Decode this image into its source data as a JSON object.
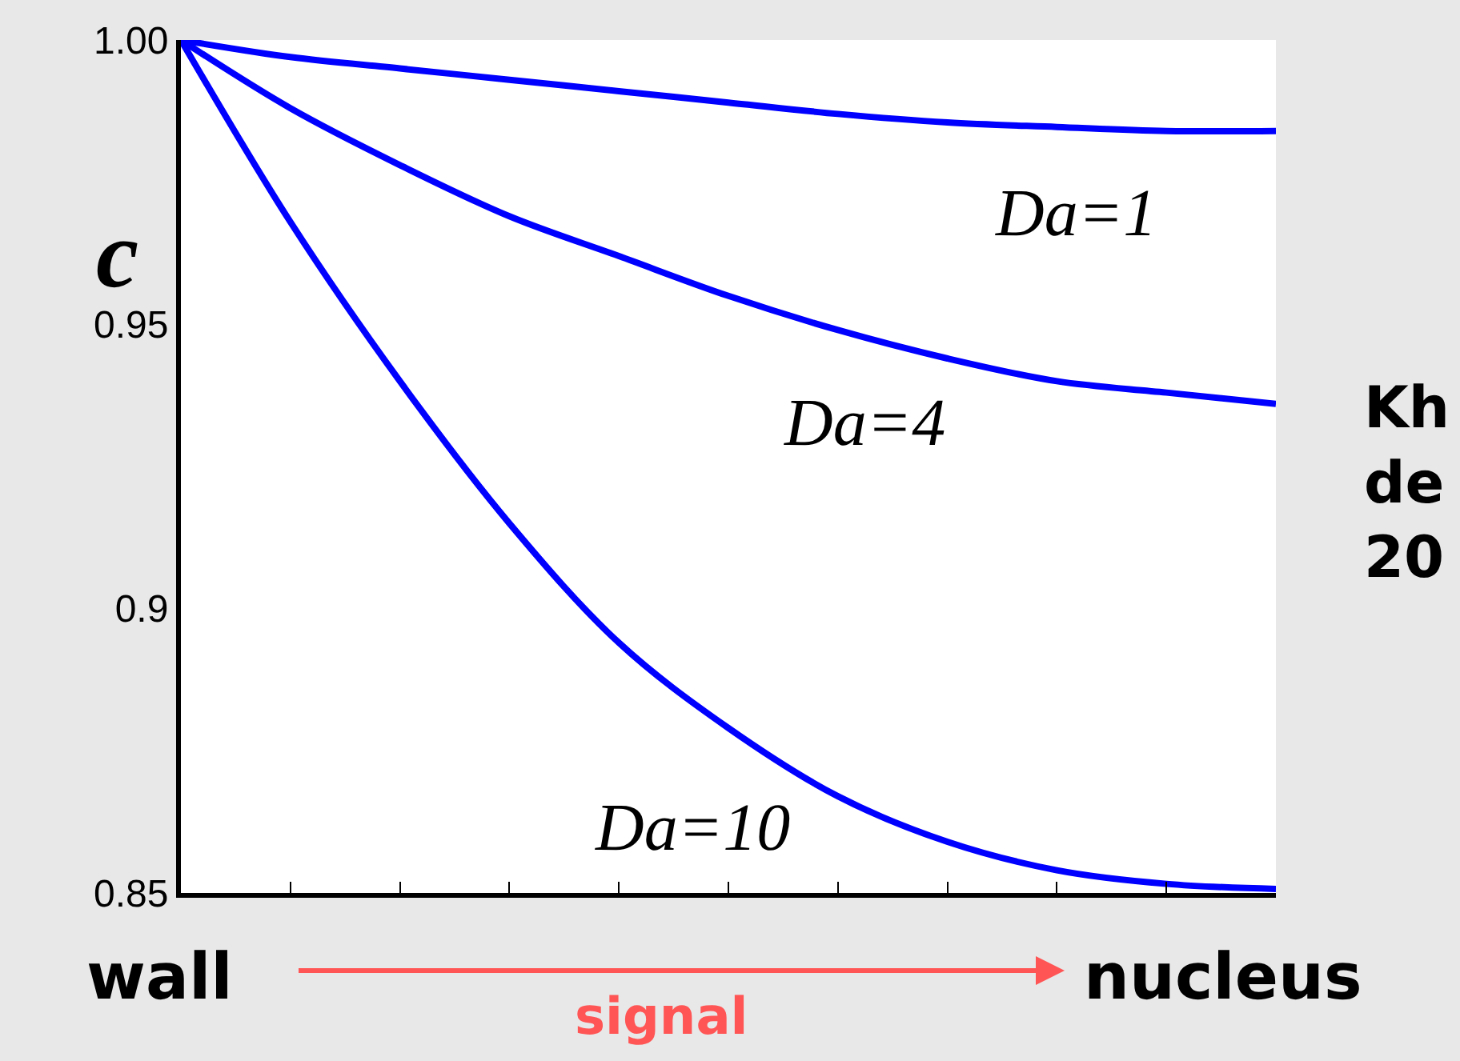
{
  "chart_data": {
    "type": "line",
    "ylabel": "c",
    "categories": [
      null,
      null,
      null,
      null,
      null,
      null,
      null,
      null,
      null,
      null,
      null
    ],
    "series": [
      {
        "color": "#0000ff",
        "values": [
          1.0,
          0.997,
          0.995,
          0.993,
          0.991,
          0.989,
          0.987,
          0.9855,
          0.9847,
          0.984,
          0.984
        ]
      },
      {
        "color": "#0000ff",
        "values": [
          1.0,
          0.988,
          0.978,
          0.969,
          0.962,
          0.955,
          0.949,
          0.944,
          0.94,
          0.938,
          0.936
        ]
      },
      {
        "color": "#0000ff",
        "values": [
          1.0,
          0.968,
          0.94,
          0.915,
          0.894,
          0.879,
          0.867,
          0.859,
          0.854,
          0.8516,
          0.8507
        ]
      }
    ],
    "ylim": [
      0.85,
      1.0
    ],
    "yticks": [
      {
        "value": 0.85,
        "label": "0.85"
      },
      {
        "value": 0.9,
        "label": "0.9"
      },
      {
        "value": 0.95,
        "label": "0.95"
      },
      {
        "value": 1.0,
        "label": "1.00"
      }
    ],
    "tick_labels": "y",
    "marker": "none",
    "line_style": "solid",
    "annotations": [
      "Da=1",
      "Da=4",
      "Da=10",
      "wall",
      "signal",
      "nucleus",
      "Kh\nde\n20"
    ]
  }
}
